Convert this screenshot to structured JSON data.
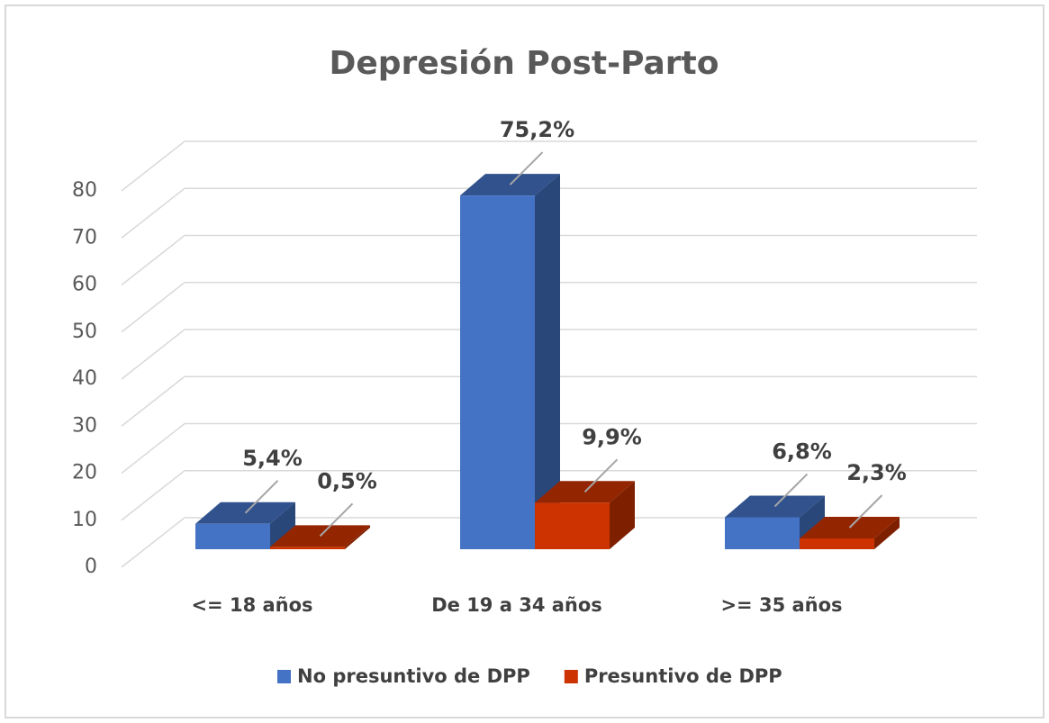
{
  "chart_data": {
    "type": "bar3d",
    "title": "Depresión Post-Parto",
    "categories": [
      "<= 18 años",
      "De 19 a 34 años",
      ">= 35 años"
    ],
    "series": [
      {
        "name": "No presuntivo de DPP",
        "color": "#4472c4",
        "values": [
          5.4,
          75.2,
          6.8
        ],
        "value_labels": [
          "5,4%",
          "75,2%",
          "6,8%"
        ]
      },
      {
        "name": "Presuntivo de DPP",
        "color": "#cc3300",
        "values": [
          0.5,
          9.9,
          2.3
        ],
        "value_labels": [
          "0,5%",
          "9,9%",
          "2,3%"
        ]
      }
    ],
    "ylim": [
      0,
      80
    ],
    "yticks": [
      0,
      10,
      20,
      30,
      40,
      50,
      60,
      70,
      80
    ],
    "grid": true,
    "legend": "bottom"
  }
}
